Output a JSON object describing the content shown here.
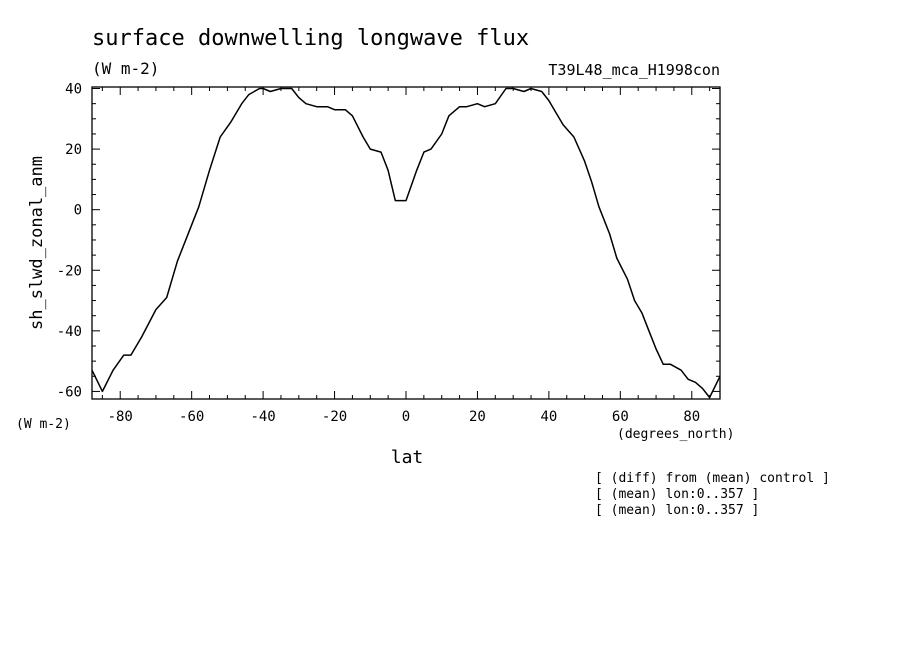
{
  "chart_data": {
    "type": "line",
    "title": "surface downwelling longwave flux",
    "subtitle": "(W m-2)",
    "experiment": "T39L48_mca_H1998con",
    "xlabel": "lat",
    "x_units": "(degrees_north)",
    "ylabel": "sh_slwd_zonal_anm",
    "y_units": "(W m-2)",
    "xlim": [
      -87.9,
      87.9
    ],
    "ylim": [
      -62.5,
      40.5
    ],
    "xticks": [
      -80,
      -60,
      -40,
      -20,
      0,
      20,
      40,
      60,
      80
    ],
    "yticks": [
      -60,
      -40,
      -20,
      0,
      20,
      40
    ],
    "xtick_labels": [
      "-80",
      "-60",
      "-40",
      "-20",
      "0",
      "20",
      "40",
      "60",
      "80"
    ],
    "ytick_labels": [
      "-60",
      "-40",
      "-20",
      "0",
      "20",
      "40"
    ],
    "grid": false,
    "series": [
      {
        "name": "",
        "color": "#000000",
        "x": [
          -87.9,
          -85,
          -82,
          -79,
          -77,
          -74,
          -70,
          -67,
          -64,
          -60,
          -58,
          -55,
          -52,
          -49,
          -46,
          -44,
          -41,
          -40,
          -38,
          -35,
          -32,
          -30,
          -28,
          -25,
          -22,
          -20,
          -17,
          -15,
          -12,
          -10,
          -7,
          -5,
          -3,
          0,
          3,
          5,
          7,
          10,
          12,
          15,
          17,
          20,
          22,
          25,
          28,
          30,
          33,
          35,
          38,
          40,
          42,
          44,
          47,
          50,
          52,
          54,
          57,
          59,
          62,
          64,
          66,
          68,
          70,
          72,
          74,
          77,
          79,
          81,
          83,
          85,
          87.9
        ],
        "y": [
          -53,
          -60,
          -53,
          -48,
          -48,
          -42,
          -33,
          -29,
          -17,
          -5,
          1,
          13,
          24,
          29,
          35,
          38,
          40,
          40,
          39,
          40,
          40,
          37,
          35,
          34,
          34,
          33,
          33,
          31,
          24,
          20,
          19,
          13,
          3,
          3,
          13,
          19,
          20,
          25,
          31,
          34,
          34,
          35,
          34,
          35,
          40,
          40,
          39,
          40,
          39,
          36,
          32,
          28,
          24,
          16,
          9,
          1,
          -8,
          -16,
          -23,
          -30,
          -34,
          -40,
          -46,
          -51,
          -51,
          -53,
          -56,
          -57,
          -59,
          -62,
          -55
        ]
      }
    ],
    "annotations": [
      "[ (diff) from (mean) control ]",
      "[ (mean) lon:0..357 ]",
      "[ (mean) lon:0..357 ]"
    ]
  }
}
